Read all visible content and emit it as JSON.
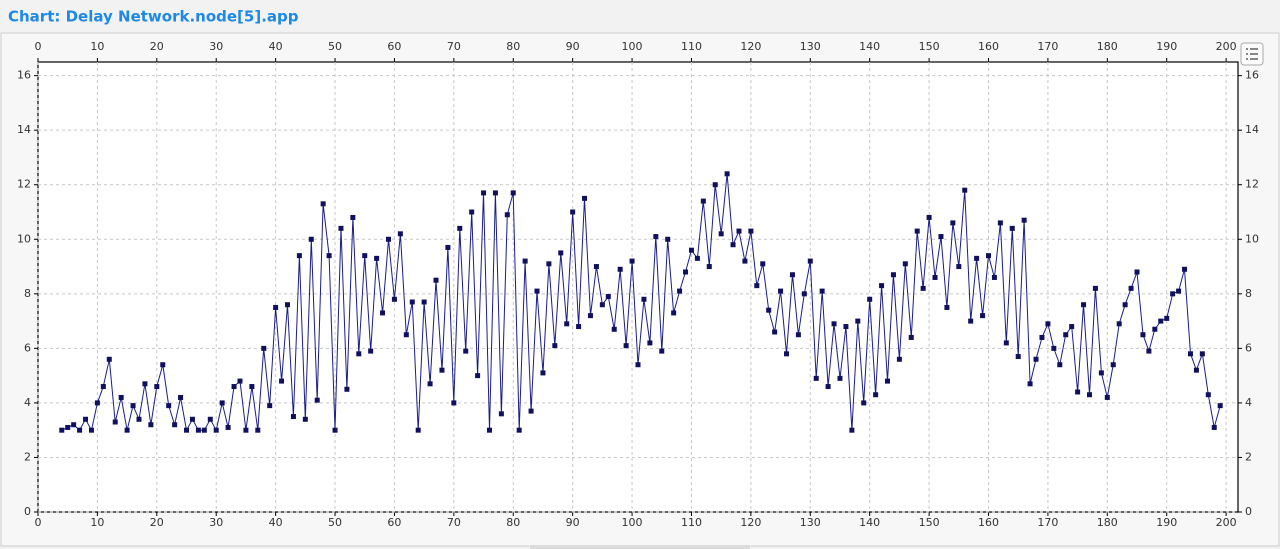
{
  "chart_data": {
    "type": "line",
    "title": "Chart: Delay Network.node[5].app",
    "color": "#1c1c8a",
    "grid": true,
    "xlim": [
      0,
      202
    ],
    "ylim": [
      0,
      16.5
    ],
    "xticks": [
      0,
      10,
      20,
      30,
      40,
      50,
      60,
      70,
      80,
      90,
      100,
      110,
      120,
      130,
      140,
      150,
      160,
      170,
      180,
      190,
      200
    ],
    "yticks": [
      0,
      2,
      4,
      6,
      8,
      10,
      12,
      14,
      16
    ],
    "x": [
      4,
      5,
      6,
      7,
      8,
      9,
      10,
      11,
      12,
      13,
      14,
      15,
      16,
      17,
      18,
      19,
      20,
      21,
      22,
      23,
      24,
      25,
      26,
      27,
      28,
      29,
      30,
      31,
      32,
      33,
      34,
      35,
      36,
      37,
      38,
      39,
      40,
      41,
      42,
      43,
      44,
      45,
      46,
      47,
      48,
      49,
      50,
      51,
      52,
      53,
      54,
      55,
      56,
      57,
      58,
      59,
      60,
      61,
      62,
      63,
      64,
      65,
      66,
      67,
      68,
      69,
      70,
      71,
      72,
      73,
      74,
      75,
      76,
      77,
      78,
      79,
      80,
      81,
      82,
      83,
      84,
      85,
      86,
      87,
      88,
      89,
      90,
      91,
      92,
      93,
      94,
      95,
      96,
      97,
      98,
      99,
      100,
      101,
      102,
      103,
      104,
      105,
      106,
      107,
      108,
      109,
      110,
      111,
      112,
      113,
      114,
      115,
      116,
      117,
      118,
      119,
      120,
      121,
      122,
      123,
      124,
      125,
      126,
      127,
      128,
      129,
      130,
      131,
      132,
      133,
      134,
      135,
      136,
      137,
      138,
      139,
      140,
      141,
      142,
      143,
      144,
      145,
      146,
      147,
      148,
      149,
      150,
      151,
      152,
      153,
      154,
      155,
      156,
      157,
      158,
      159,
      160,
      161,
      162,
      163,
      164,
      165,
      166,
      167,
      168,
      169,
      170,
      171,
      172,
      173,
      174,
      175,
      176,
      177,
      178,
      179,
      180,
      181,
      182,
      183,
      184,
      185,
      186,
      187,
      188,
      189,
      190,
      191,
      192,
      193,
      194,
      195,
      196,
      197,
      198,
      199
    ],
    "values": [
      3.0,
      3.1,
      3.2,
      3.0,
      3.4,
      3.0,
      4.0,
      4.6,
      5.6,
      3.3,
      4.2,
      3.0,
      3.9,
      3.4,
      4.7,
      3.2,
      4.6,
      5.4,
      3.9,
      3.2,
      4.2,
      3.0,
      3.4,
      3.0,
      3.0,
      3.4,
      3.0,
      4.0,
      3.1,
      4.6,
      4.8,
      3.0,
      4.6,
      3.0,
      6.0,
      3.9,
      7.5,
      4.8,
      7.6,
      3.5,
      9.4,
      3.4,
      10.0,
      4.1,
      11.3,
      9.4,
      3.0,
      10.4,
      4.5,
      10.8,
      5.8,
      9.4,
      5.9,
      9.3,
      7.3,
      10.0,
      7.8,
      10.2,
      6.5,
      7.7,
      3.0,
      7.7,
      4.7,
      8.5,
      5.2,
      9.7,
      4.0,
      10.4,
      5.9,
      11.0,
      5.0,
      11.7,
      3.0,
      11.7,
      3.6,
      10.9,
      11.7,
      3.0,
      9.2,
      3.7,
      8.1,
      5.1,
      9.1,
      6.1,
      9.5,
      6.9,
      11.0,
      6.8,
      11.5,
      7.2,
      9.0,
      7.6,
      7.9,
      6.7,
      8.9,
      6.1,
      9.2,
      5.4,
      7.8,
      6.2,
      10.1,
      5.9,
      10.0,
      7.3,
      8.1,
      8.8,
      9.6,
      9.3,
      11.4,
      9.0,
      12.0,
      10.2,
      12.4,
      9.8,
      10.3,
      9.2,
      10.3,
      8.3,
      9.1,
      7.4,
      6.6,
      8.1,
      5.8,
      8.7,
      6.5,
      8.0,
      9.2,
      4.9,
      8.1,
      4.6,
      6.9,
      4.9,
      6.8,
      3.0,
      7.0,
      4.0,
      7.8,
      4.3,
      8.3,
      4.8,
      8.7,
      5.6,
      9.1,
      6.4,
      10.3,
      8.2,
      10.8,
      8.6,
      10.1,
      7.5,
      10.6,
      9.0,
      11.8,
      7.0,
      9.3,
      7.2,
      9.4,
      8.6,
      10.6,
      6.2,
      10.4,
      5.7,
      10.7,
      4.7,
      5.6,
      6.4,
      6.9,
      6.0,
      5.4,
      6.5,
      6.8,
      4.4,
      7.6,
      4.3,
      8.2,
      5.1,
      4.2,
      5.4,
      6.9,
      7.6,
      8.2,
      8.8,
      6.5,
      5.9,
      6.7,
      7.0,
      7.1,
      8.0,
      8.1,
      8.9,
      5.8,
      5.2,
      5.8,
      4.3,
      3.1,
      3.9
    ]
  }
}
